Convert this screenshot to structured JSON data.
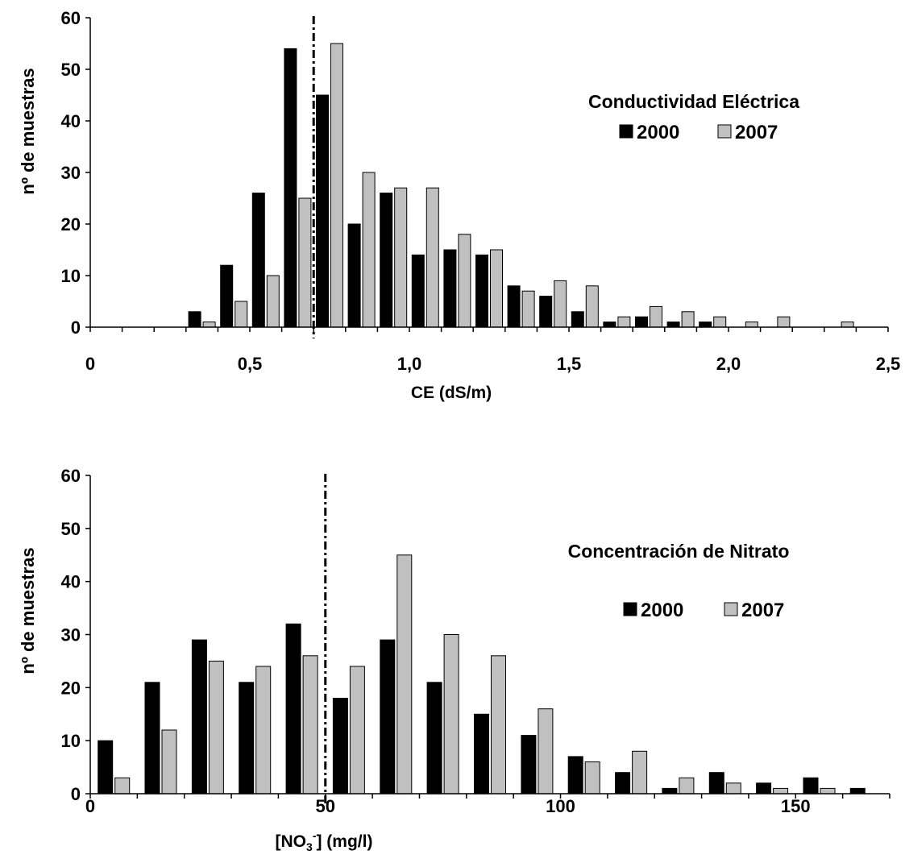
{
  "chart_data": [
    {
      "type": "bar",
      "title": "Conductividad Eléctrica",
      "xlabel": "CE (dS/m)",
      "ylabel": "nº de muestras",
      "ylim": [
        0,
        60
      ],
      "yticks": [
        "0",
        "10",
        "20",
        "30",
        "40",
        "50",
        "60"
      ],
      "xlim": [
        0,
        2.5
      ],
      "xticks": [
        "0",
        "0,5",
        "1,0",
        "1,5",
        "2,0",
        "2,5"
      ],
      "bin_width": 0.1,
      "threshold": 0.7,
      "categories": [
        0.0,
        0.1,
        0.2,
        0.3,
        0.4,
        0.5,
        0.6,
        0.7,
        0.8,
        0.9,
        1.0,
        1.1,
        1.2,
        1.3,
        1.4,
        1.5,
        1.6,
        1.7,
        1.8,
        1.9,
        2.0,
        2.1,
        2.2,
        2.3,
        2.4
      ],
      "series": [
        {
          "name": "2000",
          "color": "#000000",
          "values": [
            0,
            0,
            0,
            3,
            12,
            26,
            54,
            45,
            20,
            26,
            14,
            15,
            14,
            8,
            6,
            3,
            1,
            2,
            1,
            1,
            0,
            0,
            0,
            0,
            0
          ]
        },
        {
          "name": "2007",
          "color": "#c0c0c0",
          "values": [
            0,
            0,
            0,
            1,
            5,
            10,
            25,
            55,
            30,
            27,
            27,
            18,
            15,
            7,
            9,
            8,
            2,
            4,
            3,
            2,
            1,
            2,
            0,
            1,
            0
          ]
        }
      ],
      "legend": "right, below title"
    },
    {
      "type": "bar",
      "title": "Concentración de Nitrato",
      "xlabel_parts": [
        "[NO",
        "3",
        "-",
        "] (mg/l)"
      ],
      "ylabel": "nº de muestras",
      "ylim": [
        0,
        60
      ],
      "yticks": [
        "0",
        "10",
        "20",
        "30",
        "40",
        "50",
        "60"
      ],
      "xlim": [
        0,
        170
      ],
      "xticks": [
        "0",
        "50",
        "100",
        "150"
      ],
      "bin_width": 10,
      "threshold": 50,
      "categories": [
        0,
        10,
        20,
        30,
        40,
        50,
        60,
        70,
        80,
        90,
        100,
        110,
        120,
        130,
        140,
        150,
        160
      ],
      "series": [
        {
          "name": "2000",
          "color": "#000000",
          "values": [
            10,
            21,
            29,
            21,
            32,
            18,
            29,
            21,
            15,
            11,
            7,
            4,
            1,
            4,
            2,
            3,
            1
          ]
        },
        {
          "name": "2007",
          "color": "#c0c0c0",
          "values": [
            3,
            12,
            25,
            24,
            26,
            24,
            45,
            30,
            26,
            16,
            6,
            8,
            3,
            2,
            1,
            1,
            0
          ]
        }
      ],
      "legend": "right, below title"
    }
  ]
}
